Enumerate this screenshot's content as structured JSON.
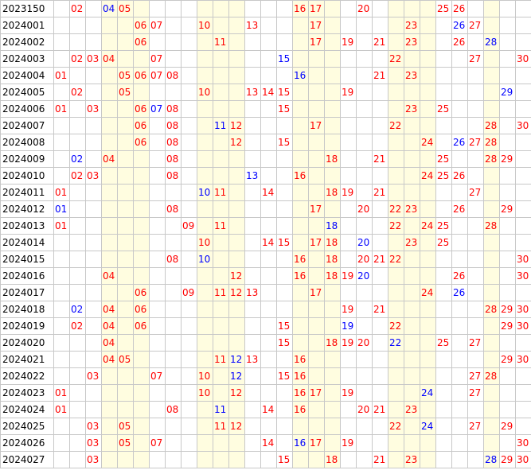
{
  "shaded_columns": [
    4,
    5,
    6,
    10,
    11,
    12,
    16,
    17,
    18,
    22,
    23,
    24,
    28
  ],
  "colors": {
    "red": "#ff0000",
    "blue": "#0000ff",
    "shade": "#fffde0",
    "grid": "#c8c8c8"
  },
  "rows": [
    {
      "period": "2023150",
      "cells": [
        {
          "c": 2,
          "t": "02",
          "k": "r"
        },
        {
          "c": 4,
          "t": "04",
          "k": "b"
        },
        {
          "c": 5,
          "t": "05",
          "k": "r"
        },
        {
          "c": 16,
          "t": "16",
          "k": "r"
        },
        {
          "c": 17,
          "t": "17",
          "k": "r"
        },
        {
          "c": 20,
          "t": "20",
          "k": "r"
        },
        {
          "c": 25,
          "t": "25",
          "k": "r"
        },
        {
          "c": 26,
          "t": "26",
          "k": "r"
        }
      ]
    },
    {
      "period": "2024001",
      "cells": [
        {
          "c": 6,
          "t": "06",
          "k": "r"
        },
        {
          "c": 7,
          "t": "07",
          "k": "r"
        },
        {
          "c": 10,
          "t": "10",
          "k": "r"
        },
        {
          "c": 13,
          "t": "13",
          "k": "r"
        },
        {
          "c": 17,
          "t": "17",
          "k": "r"
        },
        {
          "c": 23,
          "t": "23",
          "k": "r"
        },
        {
          "c": 26,
          "t": "26",
          "k": "b"
        },
        {
          "c": 27,
          "t": "27",
          "k": "r"
        }
      ]
    },
    {
      "period": "2024002",
      "cells": [
        {
          "c": 6,
          "t": "06",
          "k": "r"
        },
        {
          "c": 11,
          "t": "11",
          "k": "r"
        },
        {
          "c": 17,
          "t": "17",
          "k": "r"
        },
        {
          "c": 19,
          "t": "19",
          "k": "r"
        },
        {
          "c": 21,
          "t": "21",
          "k": "r"
        },
        {
          "c": 23,
          "t": "23",
          "k": "r"
        },
        {
          "c": 26,
          "t": "26",
          "k": "r"
        },
        {
          "c": 28,
          "t": "28",
          "k": "b"
        }
      ]
    },
    {
      "period": "2024003",
      "cells": [
        {
          "c": 2,
          "t": "02",
          "k": "r"
        },
        {
          "c": 3,
          "t": "03",
          "k": "r"
        },
        {
          "c": 4,
          "t": "04",
          "k": "r"
        },
        {
          "c": 7,
          "t": "07",
          "k": "r"
        },
        {
          "c": 15,
          "t": "15",
          "k": "b"
        },
        {
          "c": 22,
          "t": "22",
          "k": "r"
        },
        {
          "c": 27,
          "t": "27",
          "k": "r"
        },
        {
          "c": 30,
          "t": "30",
          "k": "r"
        }
      ]
    },
    {
      "period": "2024004",
      "cells": [
        {
          "c": 1,
          "t": "01",
          "k": "r"
        },
        {
          "c": 5,
          "t": "05",
          "k": "r"
        },
        {
          "c": 6,
          "t": "06",
          "k": "r"
        },
        {
          "c": 7,
          "t": "07",
          "k": "r"
        },
        {
          "c": 8,
          "t": "08",
          "k": "r"
        },
        {
          "c": 16,
          "t": "16",
          "k": "b"
        },
        {
          "c": 21,
          "t": "21",
          "k": "r"
        },
        {
          "c": 23,
          "t": "23",
          "k": "r"
        }
      ]
    },
    {
      "period": "2024005",
      "cells": [
        {
          "c": 2,
          "t": "02",
          "k": "r"
        },
        {
          "c": 5,
          "t": "05",
          "k": "r"
        },
        {
          "c": 10,
          "t": "10",
          "k": "r"
        },
        {
          "c": 13,
          "t": "13",
          "k": "r"
        },
        {
          "c": 14,
          "t": "14",
          "k": "r"
        },
        {
          "c": 15,
          "t": "15",
          "k": "r"
        },
        {
          "c": 19,
          "t": "19",
          "k": "r"
        },
        {
          "c": 29,
          "t": "29",
          "k": "b"
        }
      ]
    },
    {
      "period": "2024006",
      "cells": [
        {
          "c": 1,
          "t": "01",
          "k": "r"
        },
        {
          "c": 3,
          "t": "03",
          "k": "r"
        },
        {
          "c": 6,
          "t": "06",
          "k": "r"
        },
        {
          "c": 7,
          "t": "07",
          "k": "b"
        },
        {
          "c": 8,
          "t": "08",
          "k": "r"
        },
        {
          "c": 15,
          "t": "15",
          "k": "r"
        },
        {
          "c": 23,
          "t": "23",
          "k": "r"
        },
        {
          "c": 25,
          "t": "25",
          "k": "r"
        }
      ]
    },
    {
      "period": "2024007",
      "cells": [
        {
          "c": 6,
          "t": "06",
          "k": "r"
        },
        {
          "c": 8,
          "t": "08",
          "k": "r"
        },
        {
          "c": 11,
          "t": "11",
          "k": "b"
        },
        {
          "c": 12,
          "t": "12",
          "k": "r"
        },
        {
          "c": 17,
          "t": "17",
          "k": "r"
        },
        {
          "c": 22,
          "t": "22",
          "k": "r"
        },
        {
          "c": 28,
          "t": "28",
          "k": "r"
        },
        {
          "c": 30,
          "t": "30",
          "k": "r"
        }
      ]
    },
    {
      "period": "2024008",
      "cells": [
        {
          "c": 6,
          "t": "06",
          "k": "r"
        },
        {
          "c": 8,
          "t": "08",
          "k": "r"
        },
        {
          "c": 12,
          "t": "12",
          "k": "r"
        },
        {
          "c": 15,
          "t": "15",
          "k": "r"
        },
        {
          "c": 24,
          "t": "24",
          "k": "r"
        },
        {
          "c": 26,
          "t": "26",
          "k": "b"
        },
        {
          "c": 27,
          "t": "27",
          "k": "r"
        },
        {
          "c": 28,
          "t": "28",
          "k": "r"
        }
      ]
    },
    {
      "period": "2024009",
      "cells": [
        {
          "c": 2,
          "t": "02",
          "k": "b"
        },
        {
          "c": 4,
          "t": "04",
          "k": "r"
        },
        {
          "c": 8,
          "t": "08",
          "k": "r"
        },
        {
          "c": 18,
          "t": "18",
          "k": "r"
        },
        {
          "c": 21,
          "t": "21",
          "k": "r"
        },
        {
          "c": 25,
          "t": "25",
          "k": "r"
        },
        {
          "c": 28,
          "t": "28",
          "k": "r"
        },
        {
          "c": 29,
          "t": "29",
          "k": "r"
        }
      ]
    },
    {
      "period": "2024010",
      "cells": [
        {
          "c": 2,
          "t": "02",
          "k": "r"
        },
        {
          "c": 3,
          "t": "03",
          "k": "r"
        },
        {
          "c": 8,
          "t": "08",
          "k": "r"
        },
        {
          "c": 13,
          "t": "13",
          "k": "b"
        },
        {
          "c": 16,
          "t": "16",
          "k": "r"
        },
        {
          "c": 24,
          "t": "24",
          "k": "r"
        },
        {
          "c": 25,
          "t": "25",
          "k": "r"
        },
        {
          "c": 26,
          "t": "26",
          "k": "r"
        }
      ]
    },
    {
      "period": "2024011",
      "cells": [
        {
          "c": 1,
          "t": "01",
          "k": "r"
        },
        {
          "c": 10,
          "t": "10",
          "k": "b"
        },
        {
          "c": 11,
          "t": "11",
          "k": "r"
        },
        {
          "c": 14,
          "t": "14",
          "k": "r"
        },
        {
          "c": 18,
          "t": "18",
          "k": "r"
        },
        {
          "c": 19,
          "t": "19",
          "k": "r"
        },
        {
          "c": 21,
          "t": "21",
          "k": "r"
        },
        {
          "c": 27,
          "t": "27",
          "k": "r"
        }
      ]
    },
    {
      "period": "2024012",
      "cells": [
        {
          "c": 1,
          "t": "01",
          "k": "b"
        },
        {
          "c": 8,
          "t": "08",
          "k": "r"
        },
        {
          "c": 17,
          "t": "17",
          "k": "r"
        },
        {
          "c": 20,
          "t": "20",
          "k": "r"
        },
        {
          "c": 22,
          "t": "22",
          "k": "r"
        },
        {
          "c": 23,
          "t": "23",
          "k": "r"
        },
        {
          "c": 26,
          "t": "26",
          "k": "r"
        },
        {
          "c": 29,
          "t": "29",
          "k": "r"
        }
      ]
    },
    {
      "period": "2024013",
      "cells": [
        {
          "c": 1,
          "t": "01",
          "k": "r"
        },
        {
          "c": 9,
          "t": "09",
          "k": "r"
        },
        {
          "c": 11,
          "t": "11",
          "k": "r"
        },
        {
          "c": 18,
          "t": "18",
          "k": "b"
        },
        {
          "c": 22,
          "t": "22",
          "k": "r"
        },
        {
          "c": 24,
          "t": "24",
          "k": "r"
        },
        {
          "c": 25,
          "t": "25",
          "k": "r"
        },
        {
          "c": 28,
          "t": "28",
          "k": "r"
        }
      ]
    },
    {
      "period": "2024014",
      "cells": [
        {
          "c": 10,
          "t": "10",
          "k": "r"
        },
        {
          "c": 14,
          "t": "14",
          "k": "r"
        },
        {
          "c": 15,
          "t": "15",
          "k": "r"
        },
        {
          "c": 17,
          "t": "17",
          "k": "r"
        },
        {
          "c": 18,
          "t": "18",
          "k": "r"
        },
        {
          "c": 20,
          "t": "20",
          "k": "b"
        },
        {
          "c": 23,
          "t": "23",
          "k": "r"
        },
        {
          "c": 25,
          "t": "25",
          "k": "r"
        }
      ]
    },
    {
      "period": "2024015",
      "cells": [
        {
          "c": 8,
          "t": "08",
          "k": "r"
        },
        {
          "c": 10,
          "t": "10",
          "k": "b"
        },
        {
          "c": 16,
          "t": "16",
          "k": "r"
        },
        {
          "c": 18,
          "t": "18",
          "k": "r"
        },
        {
          "c": 20,
          "t": "20",
          "k": "r"
        },
        {
          "c": 21,
          "t": "21",
          "k": "r"
        },
        {
          "c": 22,
          "t": "22",
          "k": "r"
        },
        {
          "c": 30,
          "t": "30",
          "k": "r"
        }
      ]
    },
    {
      "period": "2024016",
      "cells": [
        {
          "c": 4,
          "t": "04",
          "k": "r"
        },
        {
          "c": 12,
          "t": "12",
          "k": "r"
        },
        {
          "c": 16,
          "t": "16",
          "k": "r"
        },
        {
          "c": 18,
          "t": "18",
          "k": "r"
        },
        {
          "c": 19,
          "t": "19",
          "k": "r"
        },
        {
          "c": 20,
          "t": "20",
          "k": "b"
        },
        {
          "c": 26,
          "t": "26",
          "k": "r"
        },
        {
          "c": 30,
          "t": "30",
          "k": "r"
        }
      ]
    },
    {
      "period": "2024017",
      "cells": [
        {
          "c": 6,
          "t": "06",
          "k": "r"
        },
        {
          "c": 9,
          "t": "09",
          "k": "r"
        },
        {
          "c": 11,
          "t": "11",
          "k": "r"
        },
        {
          "c": 12,
          "t": "12",
          "k": "r"
        },
        {
          "c": 13,
          "t": "13",
          "k": "r"
        },
        {
          "c": 17,
          "t": "17",
          "k": "r"
        },
        {
          "c": 24,
          "t": "24",
          "k": "r"
        },
        {
          "c": 26,
          "t": "26",
          "k": "b"
        }
      ]
    },
    {
      "period": "2024018",
      "cells": [
        {
          "c": 2,
          "t": "02",
          "k": "b"
        },
        {
          "c": 4,
          "t": "04",
          "k": "r"
        },
        {
          "c": 6,
          "t": "06",
          "k": "r"
        },
        {
          "c": 19,
          "t": "19",
          "k": "r"
        },
        {
          "c": 21,
          "t": "21",
          "k": "r"
        },
        {
          "c": 28,
          "t": "28",
          "k": "r"
        },
        {
          "c": 29,
          "t": "29",
          "k": "r"
        },
        {
          "c": 30,
          "t": "30",
          "k": "r"
        }
      ]
    },
    {
      "period": "2024019",
      "cells": [
        {
          "c": 2,
          "t": "02",
          "k": "r"
        },
        {
          "c": 4,
          "t": "04",
          "k": "r"
        },
        {
          "c": 6,
          "t": "06",
          "k": "r"
        },
        {
          "c": 15,
          "t": "15",
          "k": "r"
        },
        {
          "c": 19,
          "t": "19",
          "k": "b"
        },
        {
          "c": 22,
          "t": "22",
          "k": "r"
        },
        {
          "c": 29,
          "t": "29",
          "k": "r"
        },
        {
          "c": 30,
          "t": "30",
          "k": "r"
        }
      ]
    },
    {
      "period": "2024020",
      "cells": [
        {
          "c": 4,
          "t": "04",
          "k": "r"
        },
        {
          "c": 15,
          "t": "15",
          "k": "r"
        },
        {
          "c": 18,
          "t": "18",
          "k": "r"
        },
        {
          "c": 19,
          "t": "19",
          "k": "r"
        },
        {
          "c": 20,
          "t": "20",
          "k": "r"
        },
        {
          "c": 22,
          "t": "22",
          "k": "b"
        },
        {
          "c": 25,
          "t": "25",
          "k": "r"
        },
        {
          "c": 27,
          "t": "27",
          "k": "r"
        }
      ]
    },
    {
      "period": "2024021",
      "cells": [
        {
          "c": 4,
          "t": "04",
          "k": "r"
        },
        {
          "c": 5,
          "t": "05",
          "k": "r"
        },
        {
          "c": 11,
          "t": "11",
          "k": "r"
        },
        {
          "c": 12,
          "t": "12",
          "k": "b"
        },
        {
          "c": 13,
          "t": "13",
          "k": "r"
        },
        {
          "c": 16,
          "t": "16",
          "k": "r"
        },
        {
          "c": 29,
          "t": "29",
          "k": "r"
        },
        {
          "c": 30,
          "t": "30",
          "k": "r"
        }
      ]
    },
    {
      "period": "2024022",
      "cells": [
        {
          "c": 3,
          "t": "03",
          "k": "r"
        },
        {
          "c": 7,
          "t": "07",
          "k": "r"
        },
        {
          "c": 10,
          "t": "10",
          "k": "r"
        },
        {
          "c": 12,
          "t": "12",
          "k": "b"
        },
        {
          "c": 15,
          "t": "15",
          "k": "r"
        },
        {
          "c": 16,
          "t": "16",
          "k": "r"
        },
        {
          "c": 27,
          "t": "27",
          "k": "r"
        },
        {
          "c": 28,
          "t": "28",
          "k": "r"
        }
      ]
    },
    {
      "period": "2024023",
      "cells": [
        {
          "c": 1,
          "t": "01",
          "k": "r"
        },
        {
          "c": 10,
          "t": "10",
          "k": "r"
        },
        {
          "c": 12,
          "t": "12",
          "k": "r"
        },
        {
          "c": 16,
          "t": "16",
          "k": "r"
        },
        {
          "c": 17,
          "t": "17",
          "k": "r"
        },
        {
          "c": 19,
          "t": "19",
          "k": "r"
        },
        {
          "c": 24,
          "t": "24",
          "k": "b"
        },
        {
          "c": 27,
          "t": "27",
          "k": "r"
        }
      ]
    },
    {
      "period": "2024024",
      "cells": [
        {
          "c": 1,
          "t": "01",
          "k": "r"
        },
        {
          "c": 8,
          "t": "08",
          "k": "r"
        },
        {
          "c": 11,
          "t": "11",
          "k": "b"
        },
        {
          "c": 14,
          "t": "14",
          "k": "r"
        },
        {
          "c": 16,
          "t": "16",
          "k": "r"
        },
        {
          "c": 20,
          "t": "20",
          "k": "r"
        },
        {
          "c": 21,
          "t": "21",
          "k": "r"
        },
        {
          "c": 23,
          "t": "23",
          "k": "r"
        }
      ]
    },
    {
      "period": "2024025",
      "cells": [
        {
          "c": 3,
          "t": "03",
          "k": "r"
        },
        {
          "c": 5,
          "t": "05",
          "k": "r"
        },
        {
          "c": 11,
          "t": "11",
          "k": "r"
        },
        {
          "c": 12,
          "t": "12",
          "k": "r"
        },
        {
          "c": 22,
          "t": "22",
          "k": "r"
        },
        {
          "c": 24,
          "t": "24",
          "k": "b"
        },
        {
          "c": 27,
          "t": "27",
          "k": "r"
        },
        {
          "c": 29,
          "t": "29",
          "k": "r"
        }
      ]
    },
    {
      "period": "2024026",
      "cells": [
        {
          "c": 3,
          "t": "03",
          "k": "r"
        },
        {
          "c": 5,
          "t": "05",
          "k": "r"
        },
        {
          "c": 7,
          "t": "07",
          "k": "r"
        },
        {
          "c": 14,
          "t": "14",
          "k": "r"
        },
        {
          "c": 16,
          "t": "16",
          "k": "b"
        },
        {
          "c": 17,
          "t": "17",
          "k": "r"
        },
        {
          "c": 19,
          "t": "19",
          "k": "r"
        },
        {
          "c": 30,
          "t": "30",
          "k": "r"
        }
      ]
    },
    {
      "period": "2024027",
      "cells": [
        {
          "c": 3,
          "t": "03",
          "k": "r"
        },
        {
          "c": 15,
          "t": "15",
          "k": "r"
        },
        {
          "c": 18,
          "t": "18",
          "k": "r"
        },
        {
          "c": 21,
          "t": "21",
          "k": "r"
        },
        {
          "c": 23,
          "t": "23",
          "k": "r"
        },
        {
          "c": 28,
          "t": "28",
          "k": "b"
        },
        {
          "c": 29,
          "t": "29",
          "k": "r"
        },
        {
          "c": 30,
          "t": "30",
          "k": "r"
        }
      ]
    }
  ]
}
